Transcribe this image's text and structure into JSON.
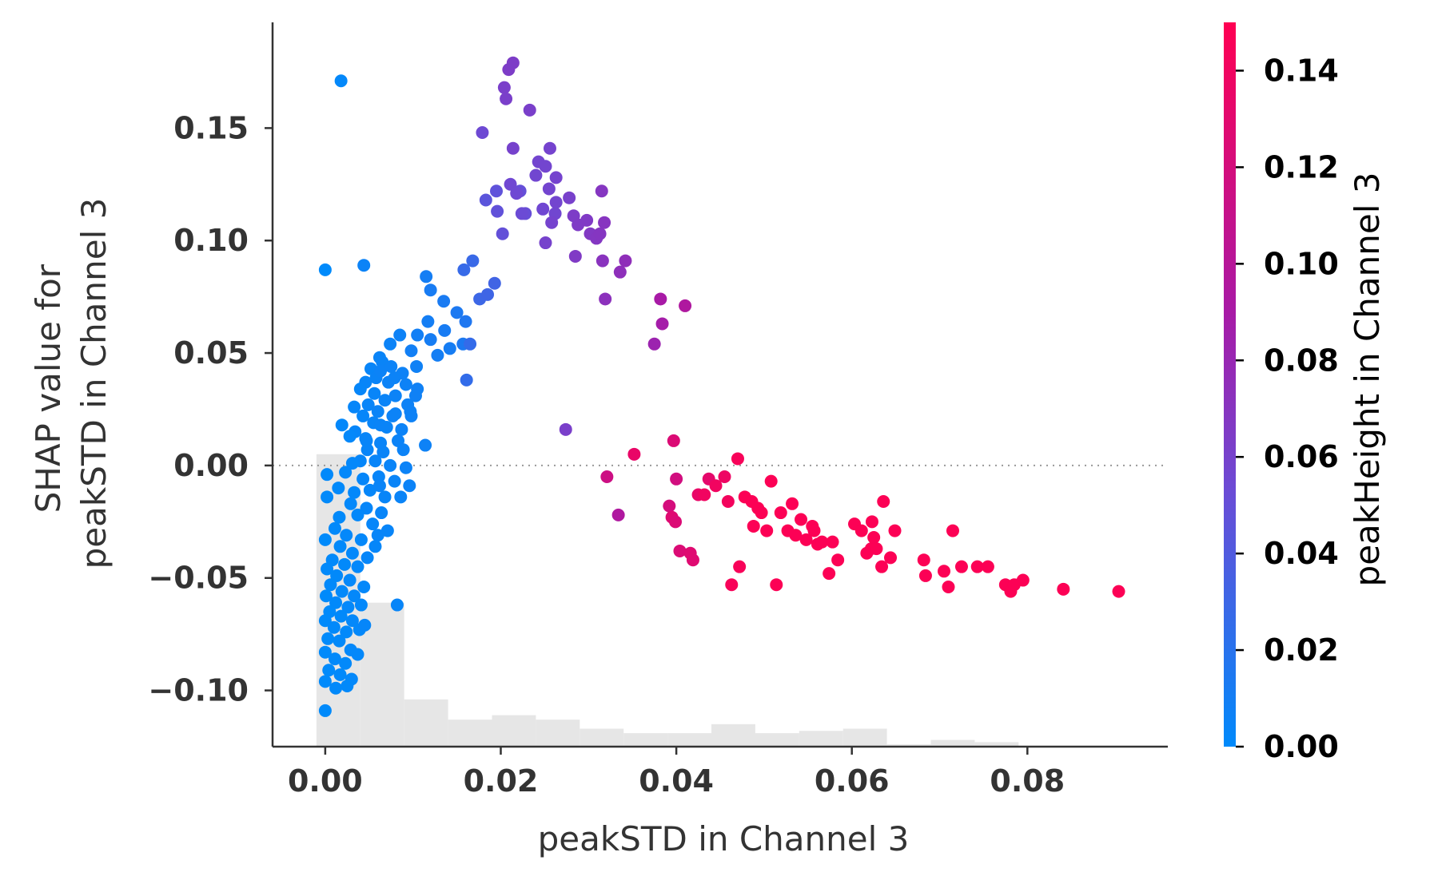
{
  "chart_data": {
    "type": "scatter",
    "title": "",
    "xlabel": "peakSTD in Channel 3",
    "ylabel_lines": [
      "SHAP value for",
      "peakSTD in Channel 3"
    ],
    "xlim": [
      -0.006,
      0.096
    ],
    "ylim": [
      -0.125,
      0.197
    ],
    "xticks": [
      0.0,
      0.02,
      0.04,
      0.06,
      0.08
    ],
    "xtick_labels": [
      "0.00",
      "0.02",
      "0.04",
      "0.06",
      "0.08"
    ],
    "yticks": [
      -0.1,
      -0.05,
      0.0,
      0.05,
      0.1,
      0.15
    ],
    "ytick_labels": [
      "−0.10",
      "−0.05",
      "0.00",
      "0.05",
      "0.10",
      "0.15"
    ],
    "zero_line": true,
    "grid": false,
    "colorbar": {
      "label": "peakHeight in Channel 3",
      "range": [
        0.0,
        0.15
      ],
      "ticks": [
        0.0,
        0.02,
        0.04,
        0.06,
        0.08,
        0.1,
        0.12,
        0.14
      ],
      "tick_labels": [
        "0.00",
        "0.02",
        "0.04",
        "0.06",
        "0.08",
        "0.10",
        "0.12",
        "0.14"
      ],
      "colors": [
        "#008afb",
        "#6a4cd6",
        "#a81aa6",
        "#ff0052"
      ]
    },
    "histogram": {
      "bin_edges": [
        -0.001,
        0.004,
        0.009,
        0.014,
        0.019,
        0.024,
        0.029,
        0.034,
        0.039,
        0.044,
        0.049,
        0.054,
        0.059,
        0.064,
        0.069,
        0.074,
        0.079,
        0.084
      ],
      "heights": [
        0.005,
        -0.061,
        -0.104,
        -0.113,
        -0.111,
        -0.113,
        -0.117,
        -0.119,
        -0.119,
        -0.115,
        -0.119,
        -0.118,
        -0.117,
        -0.124,
        -0.122,
        -0.123,
        -0.125
      ],
      "color": "#e6e6e6"
    },
    "points": [
      [
        0.0018,
        0.171,
        0.002
      ],
      [
        0.0,
        0.087,
        0.0
      ],
      [
        0.0044,
        0.089,
        0.006
      ],
      [
        0.0115,
        0.084,
        0.01
      ],
      [
        0.012,
        0.078,
        0.012
      ],
      [
        0.0135,
        0.073,
        0.013
      ],
      [
        0.015,
        0.068,
        0.014
      ],
      [
        0.016,
        0.064,
        0.016
      ],
      [
        0.0117,
        0.064,
        0.01
      ],
      [
        0.0105,
        0.058,
        0.009
      ],
      [
        0.012,
        0.056,
        0.011
      ],
      [
        0.0136,
        0.06,
        0.012
      ],
      [
        0.0157,
        0.054,
        0.014
      ],
      [
        0.0085,
        0.058,
        0.007
      ],
      [
        0.0074,
        0.054,
        0.006
      ],
      [
        0.0098,
        0.051,
        0.009
      ],
      [
        0.0128,
        0.049,
        0.01
      ],
      [
        0.0142,
        0.052,
        0.011
      ],
      [
        0.0062,
        0.048,
        0.005
      ],
      [
        0.0065,
        0.046,
        0.005
      ],
      [
        0.0075,
        0.044,
        0.006
      ],
      [
        0.0088,
        0.041,
        0.007
      ],
      [
        0.0104,
        0.044,
        0.008
      ],
      [
        0.0052,
        0.043,
        0.004
      ],
      [
        0.0058,
        0.039,
        0.005
      ],
      [
        0.0072,
        0.037,
        0.006
      ],
      [
        0.0092,
        0.036,
        0.007
      ],
      [
        0.0105,
        0.034,
        0.008
      ],
      [
        0.0046,
        0.037,
        0.004
      ],
      [
        0.0056,
        0.032,
        0.004
      ],
      [
        0.0068,
        0.029,
        0.005
      ],
      [
        0.008,
        0.031,
        0.006
      ],
      [
        0.0094,
        0.027,
        0.007
      ],
      [
        0.004,
        0.034,
        0.003
      ],
      [
        0.0049,
        0.027,
        0.004
      ],
      [
        0.006,
        0.024,
        0.005
      ],
      [
        0.0077,
        0.022,
        0.006
      ],
      [
        0.0097,
        0.024,
        0.007
      ],
      [
        0.0033,
        0.026,
        0.003
      ],
      [
        0.0043,
        0.022,
        0.003
      ],
      [
        0.0055,
        0.019,
        0.004
      ],
      [
        0.007,
        0.017,
        0.005
      ],
      [
        0.0087,
        0.016,
        0.006
      ],
      [
        0.0019,
        0.018,
        0.002
      ],
      [
        0.0034,
        0.015,
        0.003
      ],
      [
        0.0046,
        0.012,
        0.004
      ],
      [
        0.0063,
        0.01,
        0.005
      ],
      [
        0.0083,
        0.011,
        0.006
      ],
      [
        0.0028,
        0.013,
        0.002
      ],
      [
        0.0048,
        0.007,
        0.004
      ],
      [
        0.0066,
        0.006,
        0.005
      ],
      [
        0.0089,
        0.007,
        0.006
      ],
      [
        0.0114,
        0.009,
        0.007
      ],
      [
        0.004,
        0.002,
        0.003
      ],
      [
        0.0057,
        0.002,
        0.004
      ],
      [
        0.0074,
        0.0,
        0.005
      ],
      [
        0.0092,
        -0.001,
        0.006
      ],
      [
        0.0031,
        0.001,
        0.002
      ],
      [
        0.0023,
        -0.003,
        0.002
      ],
      [
        0.0043,
        -0.006,
        0.003
      ],
      [
        0.0061,
        -0.005,
        0.004
      ],
      [
        0.0079,
        -0.007,
        0.005
      ],
      [
        0.0096,
        -0.009,
        0.006
      ],
      [
        0.0002,
        -0.004,
        0.001
      ],
      [
        0.0015,
        -0.01,
        0.001
      ],
      [
        0.0033,
        -0.012,
        0.002
      ],
      [
        0.0051,
        -0.011,
        0.003
      ],
      [
        0.0068,
        -0.014,
        0.004
      ],
      [
        0.0086,
        -0.014,
        0.005
      ],
      [
        0.0029,
        -0.017,
        0.002
      ],
      [
        0.0047,
        -0.019,
        0.003
      ],
      [
        0.0064,
        -0.021,
        0.004
      ],
      [
        0.0002,
        -0.014,
        0.001
      ],
      [
        0.0016,
        -0.023,
        0.001
      ],
      [
        0.0037,
        -0.022,
        0.002
      ],
      [
        0.0054,
        -0.026,
        0.003
      ],
      [
        0.0071,
        -0.029,
        0.004
      ],
      [
        0.0011,
        -0.028,
        0.001
      ],
      [
        0.0024,
        -0.031,
        0.002
      ],
      [
        0.0041,
        -0.033,
        0.002
      ],
      [
        0.0057,
        -0.036,
        0.003
      ],
      [
        0.0,
        -0.033,
        0.0
      ],
      [
        0.0017,
        -0.036,
        0.001
      ],
      [
        0.0031,
        -0.039,
        0.002
      ],
      [
        0.0048,
        -0.041,
        0.003
      ],
      [
        0.0008,
        -0.042,
        0.001
      ],
      [
        0.0022,
        -0.044,
        0.001
      ],
      [
        0.0037,
        -0.045,
        0.002
      ],
      [
        0.0002,
        -0.046,
        0.001
      ],
      [
        0.0013,
        -0.049,
        0.001
      ],
      [
        0.0028,
        -0.051,
        0.002
      ],
      [
        0.0044,
        -0.054,
        0.002
      ],
      [
        0.0006,
        -0.053,
        0.001
      ],
      [
        0.0019,
        -0.056,
        0.001
      ],
      [
        0.0033,
        -0.058,
        0.002
      ],
      [
        0.0001,
        -0.058,
        0.0
      ],
      [
        0.0012,
        -0.061,
        0.001
      ],
      [
        0.0026,
        -0.063,
        0.002
      ],
      [
        0.0041,
        -0.062,
        0.002
      ],
      [
        0.0005,
        -0.065,
        0.0
      ],
      [
        0.0018,
        -0.067,
        0.001
      ],
      [
        0.0031,
        -0.069,
        0.002
      ],
      [
        0.0,
        -0.069,
        0.0
      ],
      [
        0.001,
        -0.072,
        0.001
      ],
      [
        0.0024,
        -0.074,
        0.001
      ],
      [
        0.0039,
        -0.073,
        0.002
      ],
      [
        0.0003,
        -0.077,
        0.0
      ],
      [
        0.0016,
        -0.078,
        0.001
      ],
      [
        0.0029,
        -0.082,
        0.002
      ],
      [
        0.0,
        -0.083,
        0.0
      ],
      [
        0.0011,
        -0.086,
        0.001
      ],
      [
        0.0023,
        -0.088,
        0.001
      ],
      [
        0.0037,
        -0.084,
        0.002
      ],
      [
        0.0004,
        -0.091,
        0.0
      ],
      [
        0.0017,
        -0.093,
        0.001
      ],
      [
        0.003,
        -0.095,
        0.002
      ],
      [
        0.0,
        -0.096,
        0.0
      ],
      [
        0.0012,
        -0.099,
        0.001
      ],
      [
        0.0025,
        -0.098,
        0.001
      ],
      [
        0.0,
        -0.109,
        0.0
      ],
      [
        0.0045,
        -0.071,
        0.003
      ],
      [
        0.0082,
        -0.062,
        0.004
      ],
      [
        0.0062,
        -0.009,
        0.005
      ],
      [
        0.006,
        -0.031,
        0.004
      ],
      [
        0.0098,
        0.022,
        0.007
      ],
      [
        0.0103,
        0.031,
        0.008
      ],
      [
        0.0063,
        0.042,
        0.006
      ],
      [
        0.0079,
        0.039,
        0.006
      ],
      [
        0.008,
        0.023,
        0.006
      ],
      [
        0.0063,
        0.018,
        0.005
      ],
      [
        0.0047,
        0.011,
        0.004
      ],
      [
        0.0158,
        0.087,
        0.027
      ],
      [
        0.0168,
        0.091,
        0.028
      ],
      [
        0.0176,
        0.074,
        0.03
      ],
      [
        0.0165,
        0.054,
        0.026
      ],
      [
        0.0161,
        0.038,
        0.025
      ],
      [
        0.0193,
        0.081,
        0.032
      ],
      [
        0.0185,
        0.076,
        0.031
      ],
      [
        0.0183,
        0.118,
        0.045
      ],
      [
        0.0195,
        0.122,
        0.047
      ],
      [
        0.0202,
        0.103,
        0.049
      ],
      [
        0.0222,
        0.122,
        0.05
      ],
      [
        0.0228,
        0.112,
        0.051
      ],
      [
        0.0196,
        0.113,
        0.048
      ],
      [
        0.0179,
        0.148,
        0.055
      ],
      [
        0.0214,
        0.141,
        0.06
      ],
      [
        0.0233,
        0.158,
        0.062
      ],
      [
        0.0209,
        0.176,
        0.064
      ],
      [
        0.0214,
        0.179,
        0.064
      ],
      [
        0.0204,
        0.168,
        0.062
      ],
      [
        0.0206,
        0.163,
        0.062
      ],
      [
        0.0243,
        0.135,
        0.058
      ],
      [
        0.0256,
        0.141,
        0.059
      ],
      [
        0.024,
        0.129,
        0.057
      ],
      [
        0.0251,
        0.133,
        0.058
      ],
      [
        0.0263,
        0.128,
        0.059
      ],
      [
        0.0211,
        0.125,
        0.056
      ],
      [
        0.0218,
        0.121,
        0.055
      ],
      [
        0.0255,
        0.123,
        0.058
      ],
      [
        0.0263,
        0.117,
        0.058
      ],
      [
        0.0262,
        0.112,
        0.057
      ],
      [
        0.0278,
        0.119,
        0.061
      ],
      [
        0.0224,
        0.112,
        0.053
      ],
      [
        0.0248,
        0.114,
        0.056
      ],
      [
        0.0258,
        0.108,
        0.059
      ],
      [
        0.0251,
        0.099,
        0.06
      ],
      [
        0.0283,
        0.111,
        0.064
      ],
      [
        0.0288,
        0.107,
        0.065
      ],
      [
        0.0298,
        0.109,
        0.066
      ],
      [
        0.0302,
        0.103,
        0.067
      ],
      [
        0.0309,
        0.101,
        0.068
      ],
      [
        0.0315,
        0.122,
        0.069
      ],
      [
        0.0313,
        0.103,
        0.069
      ],
      [
        0.0318,
        0.108,
        0.07
      ],
      [
        0.0285,
        0.093,
        0.066
      ],
      [
        0.0316,
        0.091,
        0.071
      ],
      [
        0.0336,
        0.086,
        0.074
      ],
      [
        0.0342,
        0.091,
        0.075
      ],
      [
        0.0319,
        0.074,
        0.073
      ],
      [
        0.0382,
        0.074,
        0.09
      ],
      [
        0.0384,
        0.063,
        0.088
      ],
      [
        0.0375,
        0.054,
        0.083
      ],
      [
        0.041,
        0.071,
        0.095
      ],
      [
        0.0274,
        0.016,
        0.062
      ],
      [
        0.0334,
        -0.022,
        0.095
      ],
      [
        0.0321,
        -0.005,
        0.115
      ],
      [
        0.0352,
        0.005,
        0.135
      ],
      [
        0.0397,
        0.011,
        0.125
      ],
      [
        0.0392,
        -0.018,
        0.12
      ],
      [
        0.0395,
        -0.023,
        0.128
      ],
      [
        0.0399,
        -0.025,
        0.125
      ],
      [
        0.04,
        -0.006,
        0.118
      ],
      [
        0.0404,
        -0.038,
        0.125
      ],
      [
        0.0416,
        -0.039,
        0.128
      ],
      [
        0.0419,
        -0.042,
        0.128
      ],
      [
        0.0425,
        -0.013,
        0.135
      ],
      [
        0.0432,
        -0.013,
        0.14
      ],
      [
        0.0437,
        -0.006,
        0.132
      ],
      [
        0.0445,
        -0.009,
        0.14
      ],
      [
        0.0455,
        -0.005,
        0.138
      ],
      [
        0.0459,
        -0.016,
        0.142
      ],
      [
        0.0463,
        -0.053,
        0.145
      ],
      [
        0.047,
        0.003,
        0.145
      ],
      [
        0.0472,
        -0.045,
        0.145
      ],
      [
        0.0478,
        -0.014,
        0.148
      ],
      [
        0.0486,
        -0.016,
        0.148
      ],
      [
        0.0488,
        -0.027,
        0.148
      ],
      [
        0.0493,
        -0.019,
        0.148
      ],
      [
        0.0497,
        -0.021,
        0.148
      ],
      [
        0.0503,
        -0.029,
        0.148
      ],
      [
        0.0508,
        -0.007,
        0.148
      ],
      [
        0.0514,
        -0.053,
        0.148
      ],
      [
        0.0519,
        -0.021,
        0.148
      ],
      [
        0.0527,
        -0.029,
        0.148
      ],
      [
        0.0532,
        -0.017,
        0.148
      ],
      [
        0.0536,
        -0.031,
        0.148
      ],
      [
        0.0542,
        -0.024,
        0.148
      ],
      [
        0.0548,
        -0.033,
        0.148
      ],
      [
        0.0555,
        -0.027,
        0.148
      ],
      [
        0.0557,
        -0.029,
        0.148
      ],
      [
        0.0561,
        -0.035,
        0.148
      ],
      [
        0.0566,
        -0.034,
        0.148
      ],
      [
        0.0574,
        -0.048,
        0.148
      ],
      [
        0.0578,
        -0.034,
        0.148
      ],
      [
        0.0584,
        -0.042,
        0.148
      ],
      [
        0.0603,
        -0.026,
        0.148
      ],
      [
        0.0611,
        -0.029,
        0.148
      ],
      [
        0.0617,
        -0.039,
        0.148
      ],
      [
        0.0622,
        -0.037,
        0.148
      ],
      [
        0.0623,
        -0.025,
        0.148
      ],
      [
        0.0625,
        -0.032,
        0.148
      ],
      [
        0.0628,
        -0.037,
        0.148
      ],
      [
        0.0634,
        -0.045,
        0.148
      ],
      [
        0.0636,
        -0.016,
        0.148
      ],
      [
        0.0644,
        -0.041,
        0.148
      ],
      [
        0.0649,
        -0.029,
        0.148
      ],
      [
        0.0682,
        -0.042,
        0.148
      ],
      [
        0.0684,
        -0.049,
        0.148
      ],
      [
        0.0705,
        -0.047,
        0.148
      ],
      [
        0.071,
        -0.054,
        0.148
      ],
      [
        0.0715,
        -0.029,
        0.148
      ],
      [
        0.0725,
        -0.045,
        0.148
      ],
      [
        0.0743,
        -0.045,
        0.148
      ],
      [
        0.0755,
        -0.045,
        0.148
      ],
      [
        0.0775,
        -0.053,
        0.148
      ],
      [
        0.0781,
        -0.056,
        0.148
      ],
      [
        0.0785,
        -0.053,
        0.148
      ],
      [
        0.0795,
        -0.051,
        0.148
      ],
      [
        0.0841,
        -0.055,
        0.148
      ],
      [
        0.0904,
        -0.056,
        0.148
      ]
    ]
  }
}
